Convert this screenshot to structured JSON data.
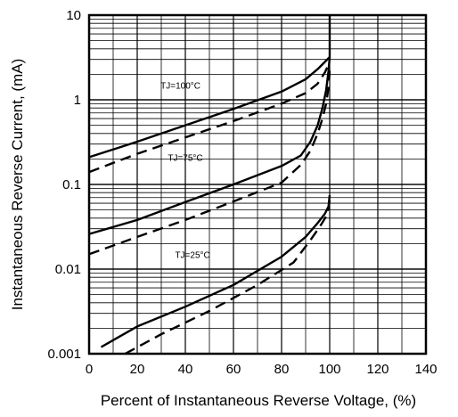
{
  "chart_data": {
    "type": "line",
    "xlabel": "Percent of Instantaneous Reverse Voltage, (%)",
    "ylabel": "Instantaneous Reverse Current, (mA)",
    "xlim": [
      0,
      140
    ],
    "ylim": [
      0.001,
      10
    ],
    "yscale": "log",
    "grid": true,
    "x_ticks": [
      "0",
      "20",
      "40",
      "60",
      "80",
      "100",
      "120",
      "140"
    ],
    "y_ticks": [
      "0.001",
      "0.01",
      "0.1",
      "1",
      "10"
    ],
    "annotations": [
      "TJ=100°C",
      "TJ=75°C",
      "TJ=25°C"
    ],
    "series": [
      {
        "style": "solid",
        "x": [
          0,
          20,
          40,
          60,
          80,
          90,
          95,
          98,
          100,
          100
        ],
        "y": [
          0.21,
          0.32,
          0.5,
          0.78,
          1.25,
          1.75,
          2.3,
          2.8,
          3.2,
          10
        ]
      },
      {
        "style": "dashed",
        "x": [
          0,
          20,
          40,
          60,
          80,
          90,
          95,
          98,
          100
        ],
        "y": [
          0.14,
          0.23,
          0.36,
          0.56,
          0.9,
          1.2,
          1.55,
          2.1,
          2.8
        ]
      },
      {
        "style": "solid",
        "x": [
          0,
          20,
          40,
          60,
          80,
          88,
          92,
          95,
          97,
          98.5,
          99.5,
          100
        ],
        "y": [
          0.026,
          0.038,
          0.062,
          0.1,
          0.165,
          0.22,
          0.32,
          0.5,
          0.8,
          1.3,
          2.2,
          3.2
        ]
      },
      {
        "style": "dashed",
        "x": [
          0,
          20,
          40,
          60,
          80,
          88,
          92,
          95,
          97,
          98.5,
          99.5,
          100
        ],
        "y": [
          0.015,
          0.024,
          0.038,
          0.063,
          0.105,
          0.17,
          0.25,
          0.4,
          0.6,
          0.9,
          1.4,
          2.2
        ]
      },
      {
        "style": "solid",
        "x": [
          5,
          20,
          40,
          60,
          80,
          90,
          95,
          98,
          99.5,
          100
        ],
        "y": [
          0.0012,
          0.0021,
          0.0036,
          0.0065,
          0.014,
          0.024,
          0.035,
          0.045,
          0.055,
          0.075
        ]
      },
      {
        "style": "dashed",
        "x": [
          15,
          30,
          50,
          70,
          85,
          92,
          96,
          98.5,
          99.5,
          100
        ],
        "y": [
          0.001,
          0.0017,
          0.0032,
          0.0065,
          0.012,
          0.022,
          0.032,
          0.042,
          0.053,
          0.065
        ]
      }
    ]
  }
}
